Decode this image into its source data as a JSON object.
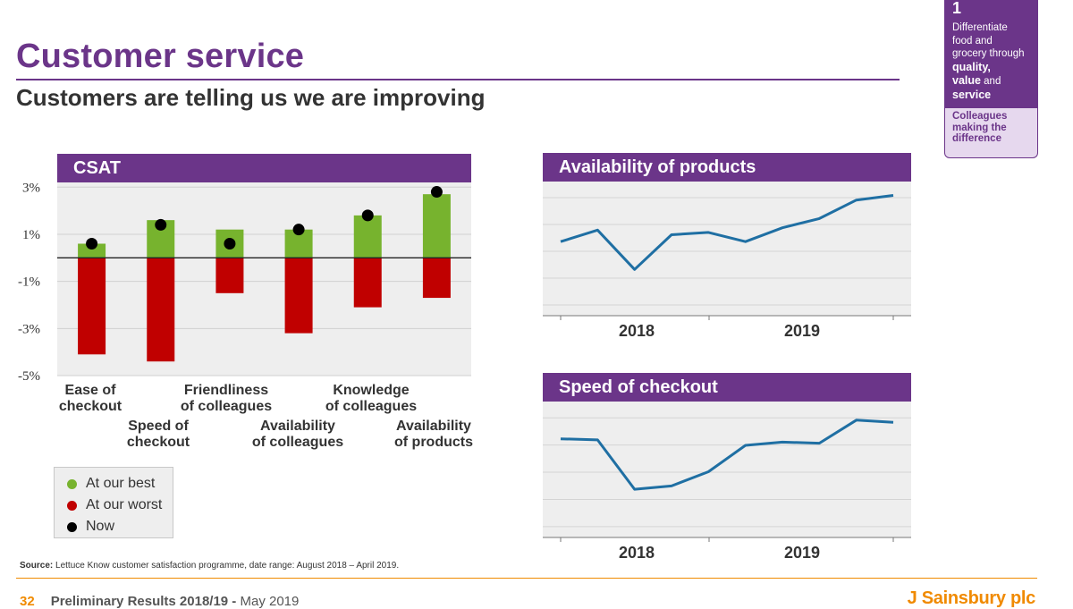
{
  "header": {
    "title": "Customer service",
    "subtitle": "Customers are telling us we are improving"
  },
  "side_box": {
    "number": "1",
    "line1": "Differentiate",
    "line2": "food and",
    "line3": "grocery through",
    "quality": "quality,",
    "value": "value",
    "and": " and",
    "service": "service",
    "bottom_line1": "Colleagues",
    "bottom_line2": "making the",
    "bottom_line3": "difference"
  },
  "legend": {
    "best": "At our best",
    "worst": "At our worst",
    "now": "Now"
  },
  "source": {
    "label": "Source:",
    "text": " Lettuce Know customer satisfaction programme,  date range: August 2018 – April 2019."
  },
  "footer": {
    "page": "32",
    "title": "Preliminary Results 2018/19",
    "separator": " - ",
    "date": "May 2019",
    "brand": "J Sainsbury plc"
  },
  "colors": {
    "purple": "#6b3589",
    "green": "#77b32e",
    "red": "#c00000",
    "line_blue": "#1f6fa3",
    "orange": "#f08a00"
  },
  "chart_data": [
    {
      "type": "bar",
      "title": "CSAT",
      "categories": [
        [
          "Ease of",
          "checkout"
        ],
        [
          "Speed of",
          "checkout"
        ],
        [
          "Friendliness",
          "of colleagues"
        ],
        [
          "Availability",
          "of colleagues"
        ],
        [
          "Knowledge",
          "of colleagues"
        ],
        [
          "Availability",
          "of products"
        ]
      ],
      "series": [
        {
          "name": "At our best",
          "values": [
            0.6,
            1.6,
            1.2,
            1.2,
            1.8,
            2.7
          ]
        },
        {
          "name": "At our worst",
          "values": [
            -4.1,
            -4.4,
            -1.5,
            -3.2,
            -2.1,
            -1.7
          ]
        },
        {
          "name": "Now",
          "values": [
            0.6,
            1.4,
            0.6,
            1.2,
            1.8,
            2.8
          ]
        }
      ],
      "y_ticks": [
        "3%",
        "1%",
        "-1%",
        "-3%",
        "-5%"
      ],
      "y_tick_values": [
        3,
        1,
        -1,
        -3,
        -5
      ],
      "ylim": [
        -5,
        3.2
      ],
      "grid": true,
      "legend_position": "bottom-left"
    },
    {
      "type": "line",
      "title": "Availability of products",
      "x_labels": [
        "2018",
        "2019"
      ],
      "values": [
        -0.2,
        0.3,
        -1.4,
        0.1,
        0.2,
        -0.2,
        0.4,
        0.8,
        1.6,
        1.8
      ],
      "ylim": [
        -3.4,
        2.4
      ],
      "grid": true
    },
    {
      "type": "line",
      "title": "Speed of checkout",
      "x_labels": [
        "2018",
        "2019"
      ],
      "values": [
        1.1,
        1.05,
        -1.2,
        -1.05,
        -0.4,
        0.8,
        0.95,
        0.9,
        1.95,
        1.85
      ],
      "ylim": [
        -3.4,
        2.8
      ],
      "grid": true
    }
  ]
}
